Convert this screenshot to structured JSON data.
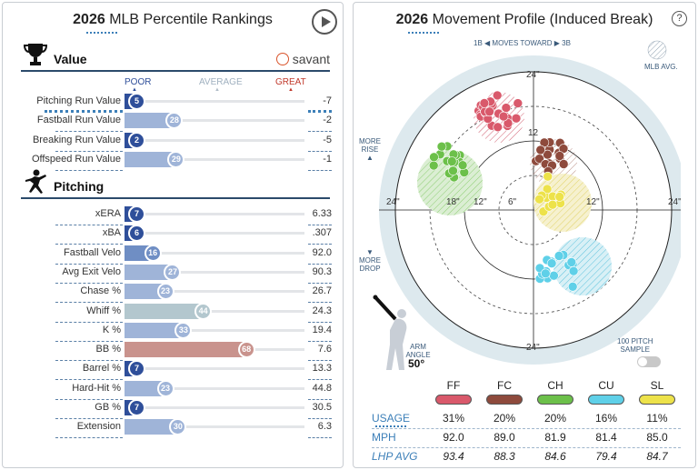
{
  "left": {
    "title_year": "2026",
    "title_rest": " MLB Percentile Rankings",
    "value_section": {
      "label": "Value",
      "brand": "savant",
      "scale": {
        "poor": "POOR",
        "average": "AVERAGE",
        "great": "GREAT"
      },
      "rows": [
        {
          "label": "Pitching Run Value",
          "percentile": 5,
          "value": "-7",
          "selected": true
        },
        {
          "label": "Fastball Run Value",
          "percentile": 28,
          "value": "-2"
        },
        {
          "label": "Breaking Run Value",
          "percentile": 2,
          "value": "-5"
        },
        {
          "label": "Offspeed Run Value",
          "percentile": 29,
          "value": "-1"
        }
      ]
    },
    "pitching_section": {
      "label": "Pitching",
      "rows": [
        {
          "label": "xERA",
          "percentile": 7,
          "value": "6.33"
        },
        {
          "label": "xBA",
          "percentile": 6,
          "value": ".307"
        },
        {
          "label": "Fastball Velo",
          "percentile": 16,
          "value": "92.0"
        },
        {
          "label": "Avg Exit Velo",
          "percentile": 27,
          "value": "90.3"
        },
        {
          "label": "Chase %",
          "percentile": 23,
          "value": "26.7"
        },
        {
          "label": "Whiff %",
          "percentile": 44,
          "value": "24.3"
        },
        {
          "label": "K %",
          "percentile": 33,
          "value": "19.4"
        },
        {
          "label": "BB %",
          "percentile": 68,
          "value": "7.6"
        },
        {
          "label": "Barrel %",
          "percentile": 7,
          "value": "13.3"
        },
        {
          "label": "Hard-Hit %",
          "percentile": 23,
          "value": "44.8"
        },
        {
          "label": "GB %",
          "percentile": 7,
          "value": "30.5"
        },
        {
          "label": "Extension",
          "percentile": 30,
          "value": "6.3"
        }
      ]
    },
    "colors": {
      "poor_dark": "#2f4f9a",
      "poor_mid": "#6f8ec4",
      "poor_light": "#9fb4d8",
      "average": "#b3c7ce",
      "above": "#c9938d",
      "great": "#c0392b"
    }
  },
  "right": {
    "title_year": "2026",
    "title_rest": " Movement Profile (Induced Break)",
    "help": "?",
    "moves_toward": {
      "left": "1B",
      "text": "MOVES TOWARD",
      "right": "3B"
    },
    "mlb_avg": "MLB AVG.",
    "more_rise": [
      "MORE",
      "RISE"
    ],
    "more_drop": [
      "MORE",
      "DROP"
    ],
    "ring_labels": {
      "outer_top": "24\"",
      "outer_bottom": "24\"",
      "left_24": "24\"",
      "left_18": "18\"",
      "left_12": "12\"",
      "left_6": "6\"",
      "right_12": "12\"",
      "right_24": "24\"",
      "top_12": "12"
    },
    "arm_angle": {
      "label_1": "ARM",
      "label_2": "ANGLE",
      "value": "50°"
    },
    "sample": {
      "label_1": "100 PITCH",
      "label_2": "SAMPLE"
    },
    "table": {
      "row_labels": {
        "usage": "USAGE",
        "mph": "MPH",
        "lhp": "LHP AVG"
      },
      "pitches": [
        {
          "code": "FF",
          "color": "#d9596b",
          "usage": "31%",
          "mph": "92.0",
          "lhp": "93.4"
        },
        {
          "code": "FC",
          "color": "#8e4a3c",
          "usage": "20%",
          "mph": "89.0",
          "lhp": "88.3"
        },
        {
          "code": "CH",
          "color": "#6cc04a",
          "usage": "20%",
          "mph": "81.9",
          "lhp": "84.6"
        },
        {
          "code": "CU",
          "color": "#5fd0e8",
          "usage": "16%",
          "mph": "81.4",
          "lhp": "79.4"
        },
        {
          "code": "SL",
          "color": "#ede24a",
          "usage": "11%",
          "mph": "85.0",
          "lhp": "84.7"
        }
      ]
    }
  }
}
